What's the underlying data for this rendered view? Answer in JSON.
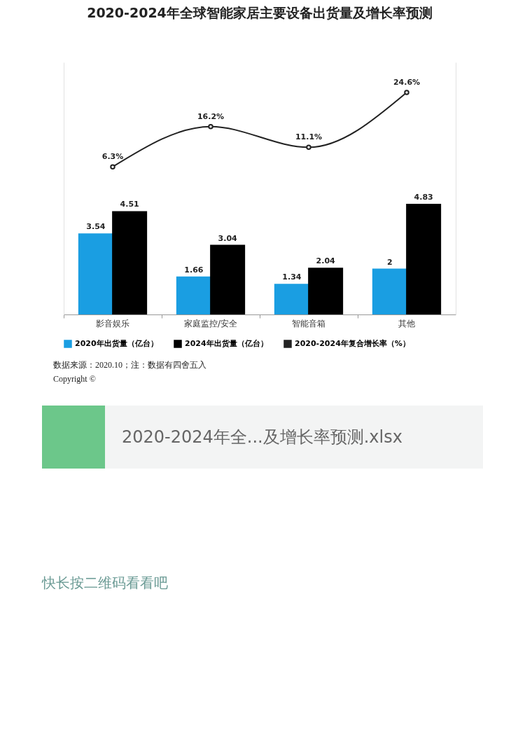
{
  "chart_data": {
    "type": "bar",
    "title": "2020-2024年全球智能家居主要设备出货量及增长率预测",
    "categories": [
      "影音娱乐",
      "家庭监控/安全",
      "智能音箱",
      "其他"
    ],
    "series": [
      {
        "name": "2020年出货量（亿台）",
        "color": "#1a9ee2",
        "values": [
          3.54,
          1.66,
          1.34,
          2
        ],
        "value_labels": [
          "3.54",
          "1.66",
          "1.34",
          "2"
        ]
      },
      {
        "name": "2024年出货量（亿台）",
        "color": "#000000",
        "values": [
          4.51,
          3.04,
          2.04,
          4.83
        ],
        "value_labels": [
          "4.51",
          "3.04",
          "2.04",
          "4.83"
        ]
      },
      {
        "name": "2020-2024年复合增长率（%）",
        "color": "#222222",
        "type": "line",
        "axis": "y2",
        "marker": "circle",
        "values": [
          6.3,
          16.2,
          11.1,
          24.6
        ],
        "value_labels": [
          "6.3%",
          "16.2%",
          "11.1%",
          "24.6%"
        ]
      }
    ],
    "ylim": [
      0,
      11
    ],
    "y2lim": [
      -30,
      32
    ],
    "tick_labels": "x",
    "grid": false,
    "legend": "bottom",
    "annotations": [
      "数据来源：2020.10；注：数据有四舍五入",
      "Copyright ©",
      "2020-2024年全...及增长率预测.xlsx",
      "快长按二维码看看吧"
    ]
  }
}
